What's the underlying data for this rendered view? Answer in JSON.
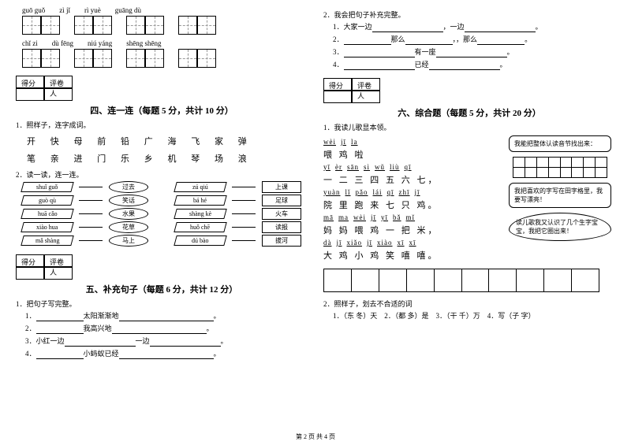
{
  "left": {
    "pinyin_row1": [
      "guō guǒ",
      "zì jǐ",
      "rì yuè",
      "guāng dù"
    ],
    "pinyin_row2": [
      "chǐ zi",
      "dù fēng",
      "niú yáng",
      "shēng shēng"
    ],
    "section4_title": "四、连一连（每题 5 分，共计 10 分）",
    "q1": "1．照样子，连字成词。",
    "chars_line1": "开 快 母 前 铅    广 海 飞 家 弹",
    "chars_line2": "笔 亲 进 门 乐    乡 机 琴 场 浪",
    "q2": "2．读一读，连一连。",
    "match_left": [
      {
        "py": "shuǐ guǒ",
        "cn": "过去"
      },
      {
        "py": "guò qù",
        "cn": "笑话"
      },
      {
        "py": "huā cǎo",
        "cn": "水果"
      },
      {
        "py": "xiào hua",
        "cn": "花草"
      },
      {
        "py": "mǎ shàng",
        "cn": "马上"
      }
    ],
    "match_right": [
      {
        "py": "zú qiú",
        "cn": "上课"
      },
      {
        "py": "bá hé",
        "cn": "足球"
      },
      {
        "py": "shàng kè",
        "cn": "火车"
      },
      {
        "py": "huǒ chē",
        "cn": "读报"
      },
      {
        "py": "dú bào",
        "cn": "拔河"
      }
    ],
    "section5_title": "五、补充句子（每题 6 分，共计 12 分）",
    "q5_1": "1．把句子写完整。",
    "s5_lines": [
      {
        "n": "1．",
        "mid": "太阳渐渐地"
      },
      {
        "n": "2．",
        "mid": "我高兴地"
      },
      {
        "n": "3．小红一边",
        "mid": "一边"
      },
      {
        "n": "4．",
        "mid": "小蚂蚁已经"
      }
    ]
  },
  "right": {
    "q2_title": "2．我会把句子补充完整。",
    "s2_lines": [
      {
        "n": "1．大家一边",
        "suf": "，一边"
      },
      {
        "n": "2．",
        "mid": "那么",
        "suf2": "，那么"
      },
      {
        "n": "3．",
        "mid": "有一座"
      },
      {
        "n": "4．",
        "mid": "已经"
      }
    ],
    "section6_title": "六、综合题（每题 5 分，共计 20 分）",
    "q6_1": "1．我读儿歌显本领。",
    "poem": [
      {
        "py": [
          "wèi",
          "jī",
          "la"
        ],
        "cn": "喂 鸡 啦"
      },
      {
        "py": [
          "yī",
          "èr",
          "sān",
          "sì",
          "wǔ",
          "liù",
          "qī"
        ],
        "cn": "一 二 三 四 五 六 七，"
      },
      {
        "py": [
          "yuàn",
          "lǐ",
          "pǎo",
          "lái",
          "qī",
          "zhī",
          "jī"
        ],
        "cn": "院 里 跑 来 七 只 鸡。"
      },
      {
        "py": [
          "mā",
          "ma",
          "wèi",
          "jī",
          "yī",
          "bǎ",
          "mǐ"
        ],
        "cn": "妈 妈 喂 鸡 一 把 米，"
      },
      {
        "py": [
          "dà",
          "jī",
          "xiǎo",
          "jī",
          "xiào",
          "xī",
          "xī"
        ],
        "cn": "大 鸡 小 鸡 笑 嘻 嘻。"
      }
    ],
    "bubble1": "我能把整体认读音节找出来：",
    "bubble2": "我把喜欢的字写在田字格里，我要写漂亮！",
    "bubble3": "读儿歌我又认识了几个生字宝宝，我把它圈出来！",
    "q6_2": "2．照样子，划去不合适的词",
    "q6_2_items": "1．（东 冬）天　2．（都 多）是　3．（干 千）万　4．写（子 字）"
  },
  "score_labels": {
    "score": "得分",
    "marker": "评卷人"
  },
  "footer": "第 2 页 共 4 页"
}
